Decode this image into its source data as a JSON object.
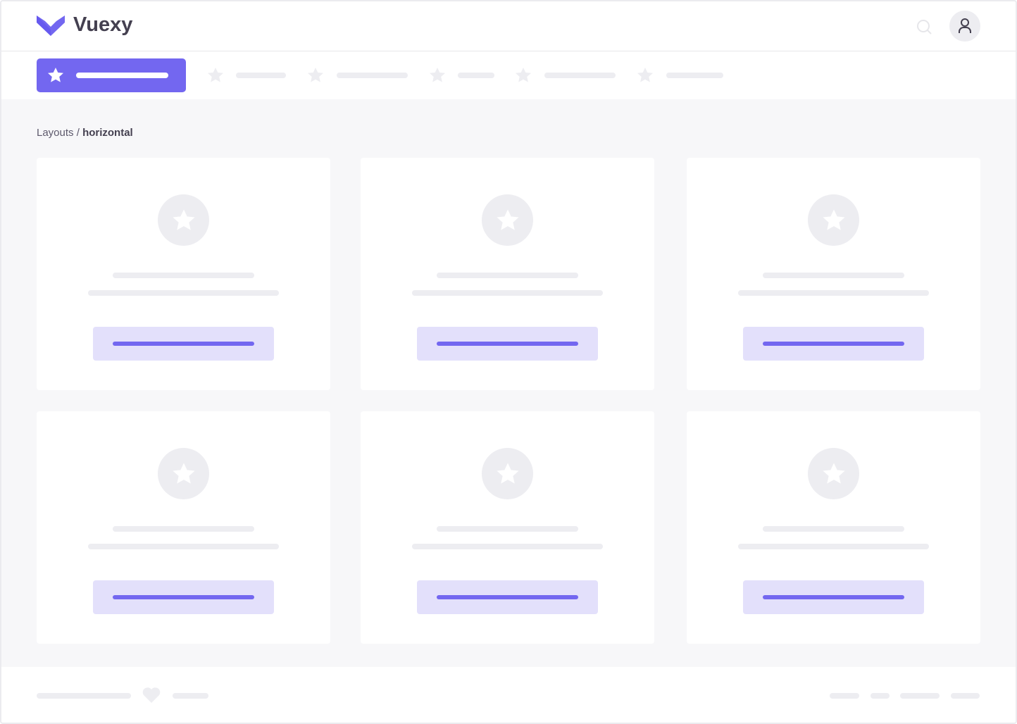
{
  "header": {
    "brand": "Vuexy",
    "logo_color": "#7367f0",
    "search_icon": "search-icon",
    "user_icon": "user-icon"
  },
  "nav": {
    "active_icon": "star-icon",
    "accent": "#7367f0",
    "item_count": 6
  },
  "breadcrumb": {
    "parent": "Layouts",
    "separator": " / ",
    "current": "horizontal"
  },
  "cards": [
    {
      "icon": "star-icon"
    },
    {
      "icon": "star-icon"
    },
    {
      "icon": "star-icon"
    },
    {
      "icon": "star-icon"
    },
    {
      "icon": "star-icon"
    },
    {
      "icon": "star-icon"
    }
  ],
  "footer": {
    "icon": "heart-icon"
  }
}
